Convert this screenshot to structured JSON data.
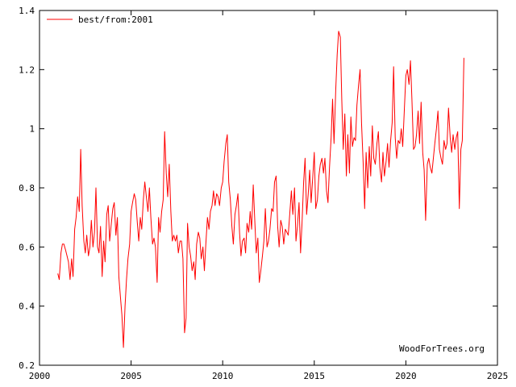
{
  "chart_data": {
    "type": "line",
    "title": "",
    "xlabel": "",
    "ylabel": "",
    "xlim": [
      2000,
      2025
    ],
    "ylim": [
      0.2,
      1.4
    ],
    "x_ticks": [
      2000,
      2005,
      2010,
      2015,
      2020,
      2025
    ],
    "x_tick_labels": [
      "2000",
      "2005",
      "2010",
      "2015",
      "2020",
      "2025"
    ],
    "y_ticks": [
      0.2,
      0.4,
      0.6,
      0.8,
      1.0,
      1.2,
      1.4
    ],
    "y_tick_labels": [
      "0.2",
      "0.4",
      "0.6",
      "0.8",
      "1",
      "1.2",
      "1.4"
    ],
    "grid": false,
    "legend_position": "top-left",
    "series": [
      {
        "name": "best/from:2001",
        "color": "#ff0000",
        "x": [
          2001.0,
          2001.08,
          2001.17,
          2001.25,
          2001.33,
          2001.42,
          2001.5,
          2001.58,
          2001.67,
          2001.75,
          2001.83,
          2001.92,
          2002.0,
          2002.08,
          2002.17,
          2002.25,
          2002.33,
          2002.42,
          2002.5,
          2002.58,
          2002.67,
          2002.75,
          2002.83,
          2002.92,
          2003.0,
          2003.08,
          2003.17,
          2003.25,
          2003.33,
          2003.42,
          2003.5,
          2003.58,
          2003.67,
          2003.75,
          2003.83,
          2003.92,
          2004.0,
          2004.08,
          2004.17,
          2004.25,
          2004.33,
          2004.42,
          2004.5,
          2004.58,
          2004.67,
          2004.75,
          2004.83,
          2004.92,
          2005.0,
          2005.08,
          2005.17,
          2005.25,
          2005.33,
          2005.42,
          2005.5,
          2005.58,
          2005.67,
          2005.75,
          2005.83,
          2005.92,
          2006.0,
          2006.08,
          2006.17,
          2006.25,
          2006.33,
          2006.42,
          2006.5,
          2006.58,
          2006.67,
          2006.75,
          2006.83,
          2006.92,
          2007.0,
          2007.08,
          2007.17,
          2007.25,
          2007.33,
          2007.42,
          2007.5,
          2007.58,
          2007.67,
          2007.75,
          2007.83,
          2007.92,
          2008.0,
          2008.08,
          2008.17,
          2008.25,
          2008.33,
          2008.42,
          2008.5,
          2008.58,
          2008.67,
          2008.75,
          2008.83,
          2008.92,
          2009.0,
          2009.08,
          2009.17,
          2009.25,
          2009.33,
          2009.42,
          2009.5,
          2009.58,
          2009.67,
          2009.75,
          2009.83,
          2009.92,
          2010.0,
          2010.08,
          2010.17,
          2010.25,
          2010.33,
          2010.42,
          2010.5,
          2010.58,
          2010.67,
          2010.75,
          2010.83,
          2010.92,
          2011.0,
          2011.08,
          2011.17,
          2011.25,
          2011.33,
          2011.42,
          2011.5,
          2011.58,
          2011.67,
          2011.75,
          2011.83,
          2011.92,
          2012.0,
          2012.08,
          2012.17,
          2012.25,
          2012.33,
          2012.42,
          2012.5,
          2012.58,
          2012.67,
          2012.75,
          2012.83,
          2012.92,
          2013.0,
          2013.08,
          2013.17,
          2013.25,
          2013.33,
          2013.42,
          2013.5,
          2013.58,
          2013.67,
          2013.75,
          2013.83,
          2013.92,
          2014.0,
          2014.08,
          2014.17,
          2014.25,
          2014.33,
          2014.42,
          2014.5,
          2014.58,
          2014.67,
          2014.75,
          2014.83,
          2014.92,
          2015.0,
          2015.08,
          2015.17,
          2015.25,
          2015.33,
          2015.42,
          2015.5,
          2015.58,
          2015.67,
          2015.75,
          2015.83,
          2015.92,
          2016.0,
          2016.08,
          2016.17,
          2016.25,
          2016.33,
          2016.42,
          2016.5,
          2016.58,
          2016.67,
          2016.75,
          2016.83,
          2016.92,
          2017.0,
          2017.08,
          2017.17,
          2017.25,
          2017.33,
          2017.42,
          2017.5,
          2017.58,
          2017.67,
          2017.75,
          2017.83,
          2017.92,
          2018.0,
          2018.08,
          2018.17,
          2018.25,
          2018.33,
          2018.42,
          2018.5,
          2018.58,
          2018.67,
          2018.75,
          2018.83,
          2018.92,
          2019.0,
          2019.08,
          2019.17,
          2019.25,
          2019.33,
          2019.42,
          2019.5,
          2019.58,
          2019.67,
          2019.75,
          2019.83,
          2019.92,
          2020.0,
          2020.08,
          2020.17,
          2020.25,
          2020.33,
          2020.42,
          2020.5,
          2020.58,
          2020.67,
          2020.75,
          2020.83,
          2020.92,
          2021.0,
          2021.08,
          2021.17,
          2021.25,
          2021.33,
          2021.42,
          2021.5,
          2021.58,
          2021.67,
          2021.75,
          2021.83,
          2021.92,
          2022.0,
          2022.08,
          2022.17,
          2022.25,
          2022.33,
          2022.42,
          2022.5,
          2022.58,
          2022.67,
          2022.75,
          2022.83,
          2022.92,
          2023.0,
          2023.08,
          2023.17
        ],
        "y": [
          0.51,
          0.49,
          0.58,
          0.61,
          0.61,
          0.59,
          0.57,
          0.55,
          0.49,
          0.56,
          0.5,
          0.66,
          0.7,
          0.77,
          0.72,
          0.93,
          0.74,
          0.62,
          0.58,
          0.64,
          0.57,
          0.6,
          0.69,
          0.6,
          0.65,
          0.8,
          0.6,
          0.58,
          0.67,
          0.5,
          0.62,
          0.55,
          0.71,
          0.74,
          0.62,
          0.68,
          0.73,
          0.75,
          0.64,
          0.7,
          0.5,
          0.43,
          0.37,
          0.26,
          0.4,
          0.49,
          0.56,
          0.61,
          0.72,
          0.75,
          0.78,
          0.76,
          0.69,
          0.62,
          0.7,
          0.66,
          0.76,
          0.82,
          0.77,
          0.72,
          0.8,
          0.7,
          0.61,
          0.63,
          0.6,
          0.48,
          0.7,
          0.65,
          0.72,
          0.76,
          0.99,
          0.85,
          0.77,
          0.88,
          0.72,
          0.62,
          0.64,
          0.62,
          0.64,
          0.58,
          0.62,
          0.62,
          0.56,
          0.31,
          0.36,
          0.68,
          0.6,
          0.57,
          0.52,
          0.55,
          0.49,
          0.61,
          0.65,
          0.63,
          0.56,
          0.6,
          0.52,
          0.61,
          0.7,
          0.66,
          0.72,
          0.74,
          0.79,
          0.74,
          0.78,
          0.77,
          0.74,
          0.8,
          0.82,
          0.89,
          0.95,
          0.98,
          0.82,
          0.76,
          0.67,
          0.61,
          0.71,
          0.74,
          0.78,
          0.65,
          0.57,
          0.62,
          0.63,
          0.58,
          0.68,
          0.65,
          0.72,
          0.66,
          0.81,
          0.69,
          0.58,
          0.63,
          0.48,
          0.52,
          0.57,
          0.62,
          0.73,
          0.6,
          0.62,
          0.66,
          0.73,
          0.72,
          0.82,
          0.84,
          0.67,
          0.6,
          0.69,
          0.67,
          0.61,
          0.66,
          0.65,
          0.64,
          0.72,
          0.79,
          0.71,
          0.8,
          0.62,
          0.67,
          0.75,
          0.58,
          0.68,
          0.82,
          0.9,
          0.71,
          0.78,
          0.86,
          0.75,
          0.84,
          0.92,
          0.73,
          0.76,
          0.84,
          0.88,
          0.9,
          0.85,
          0.9,
          0.79,
          0.75,
          0.87,
          0.97,
          1.1,
          0.95,
          1.13,
          1.25,
          1.33,
          1.31,
          1.1,
          0.93,
          1.05,
          0.84,
          0.98,
          0.85,
          1.04,
          0.94,
          0.97,
          0.96,
          1.08,
          1.15,
          1.2,
          1.02,
          0.88,
          0.73,
          0.92,
          0.8,
          0.94,
          0.84,
          1.01,
          0.9,
          0.88,
          0.95,
          0.99,
          0.87,
          0.82,
          0.92,
          0.84,
          0.89,
          0.95,
          0.87,
          0.96,
          1.02,
          1.21,
          0.97,
          0.9,
          0.96,
          0.95,
          1.0,
          0.94,
          1.07,
          1.18,
          1.2,
          1.15,
          1.23,
          1.1,
          0.93,
          0.94,
          0.98,
          1.06,
          0.95,
          1.09,
          0.92,
          0.86,
          0.69,
          0.88,
          0.9,
          0.87,
          0.85,
          0.9,
          0.95,
          1.0,
          1.06,
          0.93,
          0.9,
          0.88,
          0.96,
          0.93,
          0.95,
          1.07,
          0.97,
          0.92,
          0.98,
          0.93,
          0.97,
          0.99,
          0.73,
          0.93,
          0.96,
          1.24
        ]
      }
    ],
    "watermark": "WoodForTrees.org"
  }
}
